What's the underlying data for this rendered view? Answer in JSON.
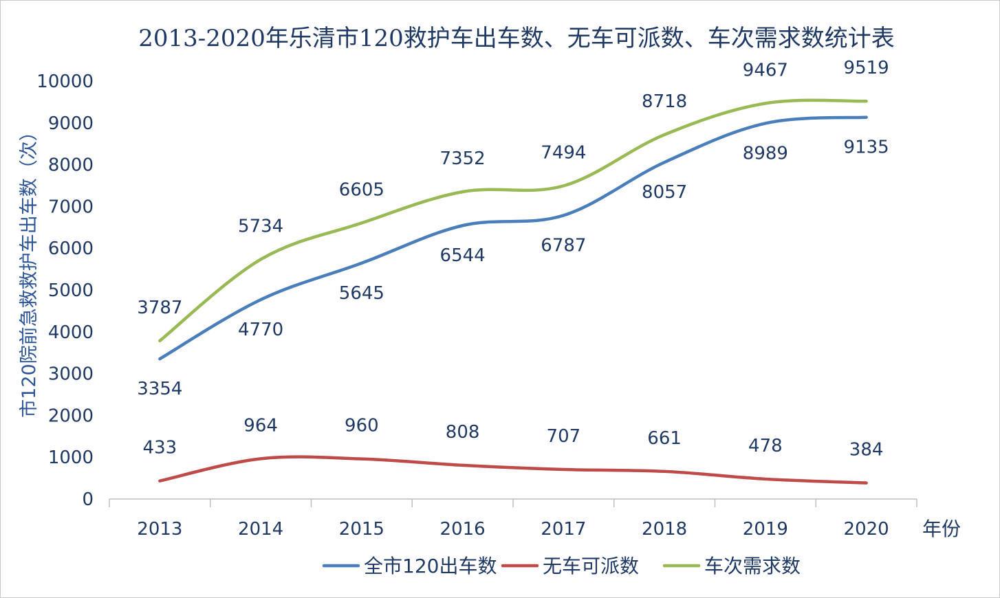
{
  "chart_data": {
    "type": "line",
    "title": "2013-2020年乐清市120救护车出车数、无车可派数、车次需求数统计表",
    "ylabel": "市120院前急救救护车出车数（次）",
    "xlabel": "年份",
    "categories": [
      "2013",
      "2014",
      "2015",
      "2016",
      "2017",
      "2018",
      "2019",
      "2020"
    ],
    "ylim": [
      0,
      10000
    ],
    "yticks": [
      0,
      1000,
      2000,
      3000,
      4000,
      5000,
      6000,
      7000,
      8000,
      9000,
      10000
    ],
    "grid": false,
    "legend_position": "bottom",
    "smooth": true,
    "series": [
      {
        "name": "全市120出车数",
        "color": "#4a7ebb",
        "label_position": "below",
        "values": [
          3354,
          4770,
          5645,
          6544,
          6787,
          8057,
          8989,
          9135
        ]
      },
      {
        "name": "无车可派数",
        "color": "#be4b48",
        "label_position": "above",
        "values": [
          433,
          964,
          960,
          808,
          707,
          661,
          478,
          384
        ]
      },
      {
        "name": "车次需求数",
        "color": "#98b954",
        "label_position": "above",
        "values": [
          3787,
          5734,
          6605,
          7352,
          7494,
          8718,
          9467,
          9519
        ]
      }
    ]
  }
}
